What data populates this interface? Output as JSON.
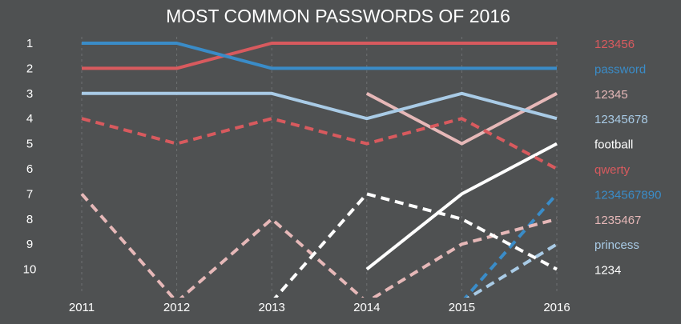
{
  "chart_data": {
    "type": "line",
    "title": "MOST COMMON PASSWORDS OF 2016",
    "xlabel": "",
    "ylabel": "",
    "x": [
      "2011",
      "2012",
      "2013",
      "2014",
      "2015",
      "2016"
    ],
    "y_ticks": [
      "1",
      "2",
      "3",
      "4",
      "5",
      "6",
      "7",
      "8",
      "9",
      "10"
    ],
    "ylim": [
      1,
      10
    ],
    "y_inverted": true,
    "grid": {
      "vertical": true,
      "horizontal": false,
      "style": "dashed"
    },
    "legend_placement": "right, aligned with 2016 rank",
    "series": [
      {
        "name": "123456",
        "color": "#d85a5e",
        "dashed": false,
        "values": [
          2,
          2,
          1,
          1,
          1,
          1
        ]
      },
      {
        "name": "password",
        "color": "#3a8cc8",
        "dashed": false,
        "values": [
          1,
          1,
          2,
          2,
          2,
          2
        ]
      },
      {
        "name": "12345",
        "color": "#e6b8b8",
        "dashed": false,
        "values": [
          null,
          null,
          null,
          3,
          5,
          3
        ]
      },
      {
        "name": "12345678",
        "color": "#a9cbe6",
        "dashed": false,
        "values": [
          3,
          3,
          3,
          4,
          3,
          4
        ]
      },
      {
        "name": "football",
        "color": "#ffffff",
        "dashed": false,
        "values": [
          null,
          null,
          null,
          10,
          7,
          5
        ]
      },
      {
        "name": "qwerty",
        "color": "#d85a5e",
        "dashed": true,
        "values": [
          4,
          5,
          4,
          5,
          4,
          6
        ]
      },
      {
        "name": "1234567890",
        "color": "#3a8cc8",
        "dashed": true,
        "values": [
          null,
          null,
          null,
          null,
          11.3,
          7
        ]
      },
      {
        "name": "1235467",
        "color": "#e6b8b8",
        "dashed": true,
        "values": [
          7,
          11.3,
          8,
          11.3,
          9,
          8
        ]
      },
      {
        "name": "princess",
        "color": "#a9cbe6",
        "dashed": true,
        "values": [
          null,
          null,
          null,
          null,
          11.3,
          9
        ]
      },
      {
        "name": "1234",
        "color": "#ffffff",
        "dashed": true,
        "values": [
          null,
          null,
          11.3,
          7,
          8,
          10
        ]
      }
    ]
  }
}
